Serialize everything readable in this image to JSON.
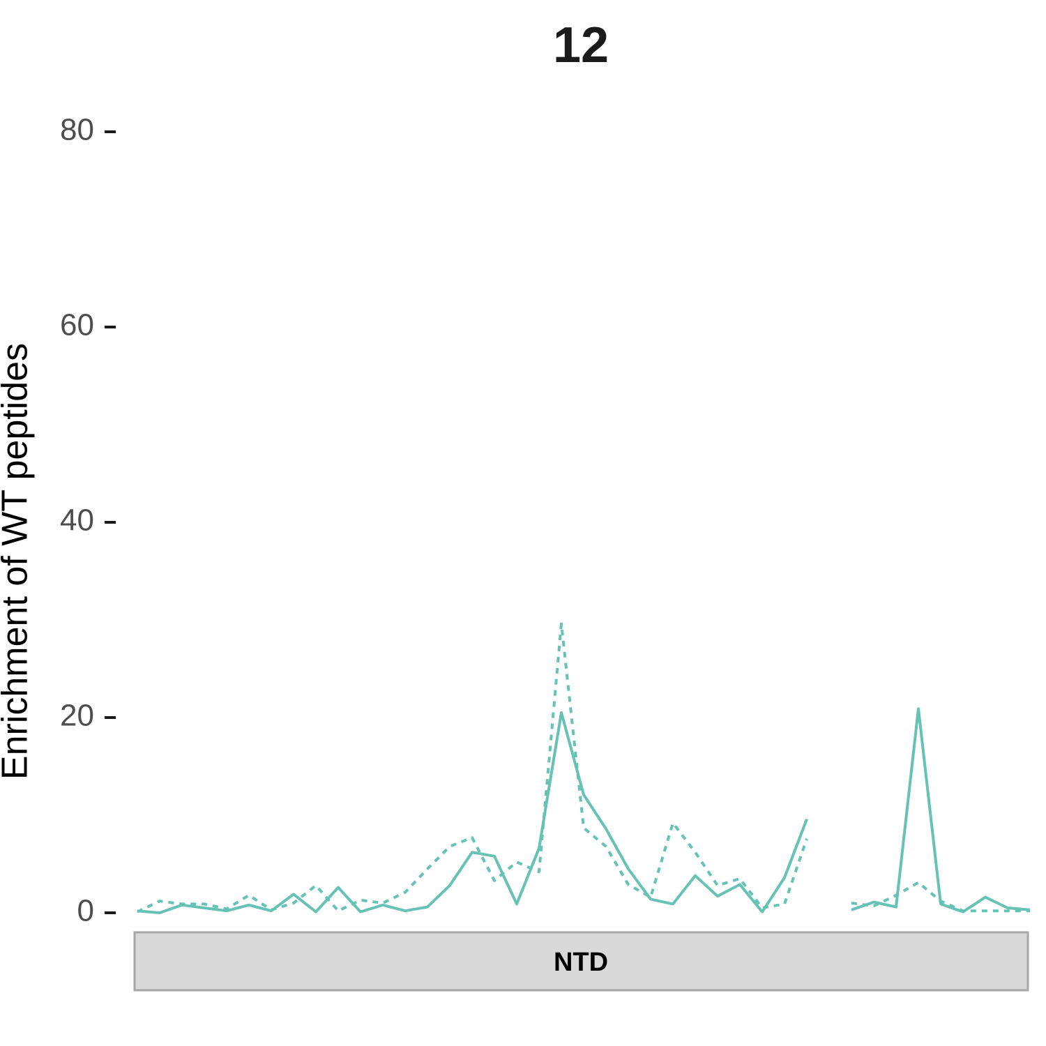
{
  "chart_data": {
    "type": "line",
    "title": "12",
    "ylabel": "Enrichment of WT peptides",
    "strip_label": "NTD",
    "categories": [
      null,
      null,
      null,
      null,
      null,
      null,
      null,
      null,
      null,
      null,
      null,
      null,
      null,
      null,
      null,
      null,
      null,
      null,
      null,
      null,
      null,
      null,
      null,
      null,
      null,
      null,
      null,
      null,
      null,
      null,
      null,
      null,
      null,
      null,
      null,
      null,
      null,
      null,
      null,
      null,
      null
    ],
    "series": [
      {
        "color": "#66c2b5",
        "linestyle": "solid",
        "values": [
          0.2,
          0,
          0.8,
          0.5,
          0.2,
          0.8,
          0.2,
          1.9,
          0.1,
          2.6,
          0.1,
          0.8,
          0.2,
          0.6,
          2.8,
          6.2,
          5.8,
          0.9,
          6.6,
          20.5,
          12.1,
          8.6,
          4.5,
          1.4,
          0.9,
          3.8,
          1.7,
          2.9,
          0.1,
          3.6,
          9.6,
          null,
          0.3,
          1.1,
          0.6,
          20.9,
          0.9,
          0.1,
          1.6,
          0.5,
          0.3
        ]
      },
      {
        "color": "#66c2b5",
        "linestyle": "dashed",
        "values": [
          0.1,
          1.2,
          0.9,
          0.9,
          0.4,
          1.8,
          0.3,
          1.0,
          2.8,
          0.2,
          1.3,
          1.0,
          2.1,
          4.5,
          6.8,
          7.7,
          3.3,
          5.2,
          4.2,
          29.6,
          8.7,
          6.8,
          2.9,
          1.6,
          9.2,
          6.2,
          2.8,
          3.5,
          0.5,
          0.9,
          7.6,
          null,
          1.0,
          0.7,
          1.8,
          3.1,
          1.2,
          0.2,
          0.2,
          0.2,
          0.2
        ]
      }
    ],
    "ylim": [
      -1.5,
      84
    ],
    "yticks": [
      0,
      20,
      40,
      60,
      80
    ],
    "grid": false
  }
}
